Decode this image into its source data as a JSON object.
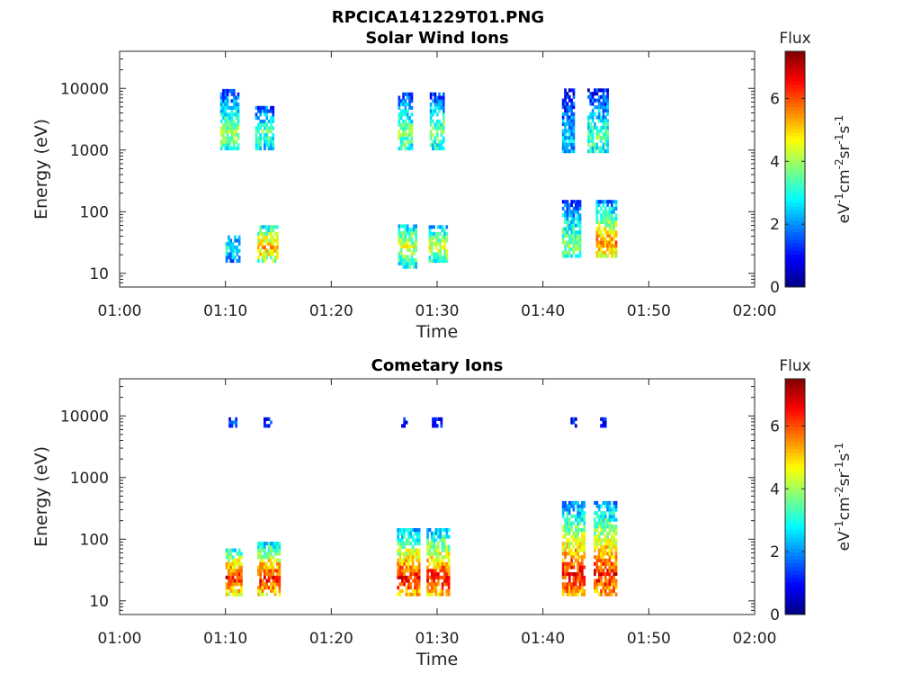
{
  "figure": {
    "filename_title": "RPCICA141229T01.PNG"
  },
  "chart_data": [
    {
      "type": "heatmap",
      "title": "Solar Wind Ions",
      "xlabel": "Time",
      "ylabel": "Energy (eV)",
      "x_ticks": [
        "01:00",
        "01:10",
        "01:20",
        "01:30",
        "01:40",
        "01:50",
        "02:00"
      ],
      "xlim_minutes": [
        0,
        60
      ],
      "y_scale": "log",
      "y_ticks": [
        10,
        100,
        1000,
        10000
      ],
      "y_tick_labels": [
        "10",
        "100",
        "1000",
        "10000"
      ],
      "ylim": [
        6,
        40000
      ],
      "colorbar": {
        "label": "Flux",
        "units_label": "eV-1cm-2sr-1s-1",
        "range": [
          0,
          7.5
        ],
        "ticks": [
          0,
          2,
          4,
          6
        ],
        "tick_labels": [
          "0",
          "2",
          "4",
          "6"
        ]
      },
      "bursts": [
        {
          "t": [
            9.5,
            11.2
          ],
          "e": [
            1000,
            9000
          ],
          "peak_e": 1800,
          "v": 4.0
        },
        {
          "t": [
            12.8,
            14.4
          ],
          "e": [
            1000,
            5000
          ],
          "peak_e": 1800,
          "v": 3.5
        },
        {
          "t": [
            26.3,
            27.6
          ],
          "e": [
            1000,
            8000
          ],
          "peak_e": 1800,
          "v": 3.8
        },
        {
          "t": [
            29.3,
            30.5
          ],
          "e": [
            1000,
            8000
          ],
          "peak_e": 1800,
          "v": 3.8
        },
        {
          "t": [
            41.8,
            43.0
          ],
          "e": [
            900,
            9000
          ],
          "peak_e": 1500,
          "v": 2.5
        },
        {
          "t": [
            44.2,
            46.2
          ],
          "e": [
            900,
            9000
          ],
          "peak_e": 1500,
          "v": 3.5
        },
        {
          "t": [
            10.0,
            11.2
          ],
          "e": [
            15,
            40
          ],
          "peak_e": 25,
          "v": 3.0
        },
        {
          "t": [
            13.0,
            14.8
          ],
          "e": [
            15,
            60
          ],
          "peak_e": 25,
          "v": 5.5
        },
        {
          "t": [
            26.3,
            28.0
          ],
          "e": [
            12,
            60
          ],
          "peak_e": 25,
          "v": 4.5
        },
        {
          "t": [
            29.2,
            30.8
          ],
          "e": [
            15,
            60
          ],
          "peak_e": 25,
          "v": 4.5
        },
        {
          "t": [
            41.8,
            43.6
          ],
          "e": [
            18,
            150
          ],
          "peak_e": 28,
          "v": 4.0
        },
        {
          "t": [
            45.0,
            47.0
          ],
          "e": [
            18,
            150
          ],
          "peak_e": 30,
          "v": 5.5
        }
      ]
    },
    {
      "type": "heatmap",
      "title": "Cometary Ions",
      "xlabel": "Time",
      "ylabel": "Energy (eV)",
      "x_ticks": [
        "01:00",
        "01:10",
        "01:20",
        "01:30",
        "01:40",
        "01:50",
        "02:00"
      ],
      "xlim_minutes": [
        0,
        60
      ],
      "y_scale": "log",
      "y_ticks": [
        10,
        100,
        1000,
        10000
      ],
      "y_tick_labels": [
        "10",
        "100",
        "1000",
        "10000"
      ],
      "ylim": [
        6,
        40000
      ],
      "colorbar": {
        "label": "Flux",
        "units_label": "eV-1cm-2sr-1s-1",
        "range": [
          0,
          7.5
        ],
        "ticks": [
          0,
          2,
          4,
          6
        ],
        "tick_labels": [
          "0",
          "2",
          "4",
          "6"
        ]
      },
      "bursts": [
        {
          "t": [
            10.0,
            11.4
          ],
          "e": [
            12,
            70
          ],
          "peak_e": 22,
          "v": 6.5
        },
        {
          "t": [
            13.0,
            15.0
          ],
          "e": [
            12,
            90
          ],
          "peak_e": 22,
          "v": 6.5
        },
        {
          "t": [
            26.2,
            28.2
          ],
          "e": [
            12,
            150
          ],
          "peak_e": 22,
          "v": 6.5
        },
        {
          "t": [
            29.0,
            31.0
          ],
          "e": [
            12,
            150
          ],
          "peak_e": 22,
          "v": 6.5
        },
        {
          "t": [
            41.8,
            44.0
          ],
          "e": [
            12,
            400
          ],
          "peak_e": 25,
          "v": 6.5
        },
        {
          "t": [
            44.8,
            47.0
          ],
          "e": [
            12,
            400
          ],
          "peak_e": 25,
          "v": 6.5
        },
        {
          "t": [
            10.3,
            11.0
          ],
          "e": [
            6500,
            8500
          ],
          "peak_e": 7500,
          "v": 1.2
        },
        {
          "t": [
            13.6,
            14.2
          ],
          "e": [
            6500,
            8500
          ],
          "peak_e": 7500,
          "v": 1.2
        },
        {
          "t": [
            26.6,
            27.2
          ],
          "e": [
            6500,
            8500
          ],
          "peak_e": 7500,
          "v": 1.2
        },
        {
          "t": [
            29.5,
            30.3
          ],
          "e": [
            6500,
            8500
          ],
          "peak_e": 7500,
          "v": 1.2
        },
        {
          "t": [
            42.6,
            43.2
          ],
          "e": [
            6500,
            8500
          ],
          "peak_e": 7500,
          "v": 1.2
        },
        {
          "t": [
            45.4,
            46.0
          ],
          "e": [
            6500,
            8500
          ],
          "peak_e": 7500,
          "v": 1.2
        }
      ]
    }
  ]
}
